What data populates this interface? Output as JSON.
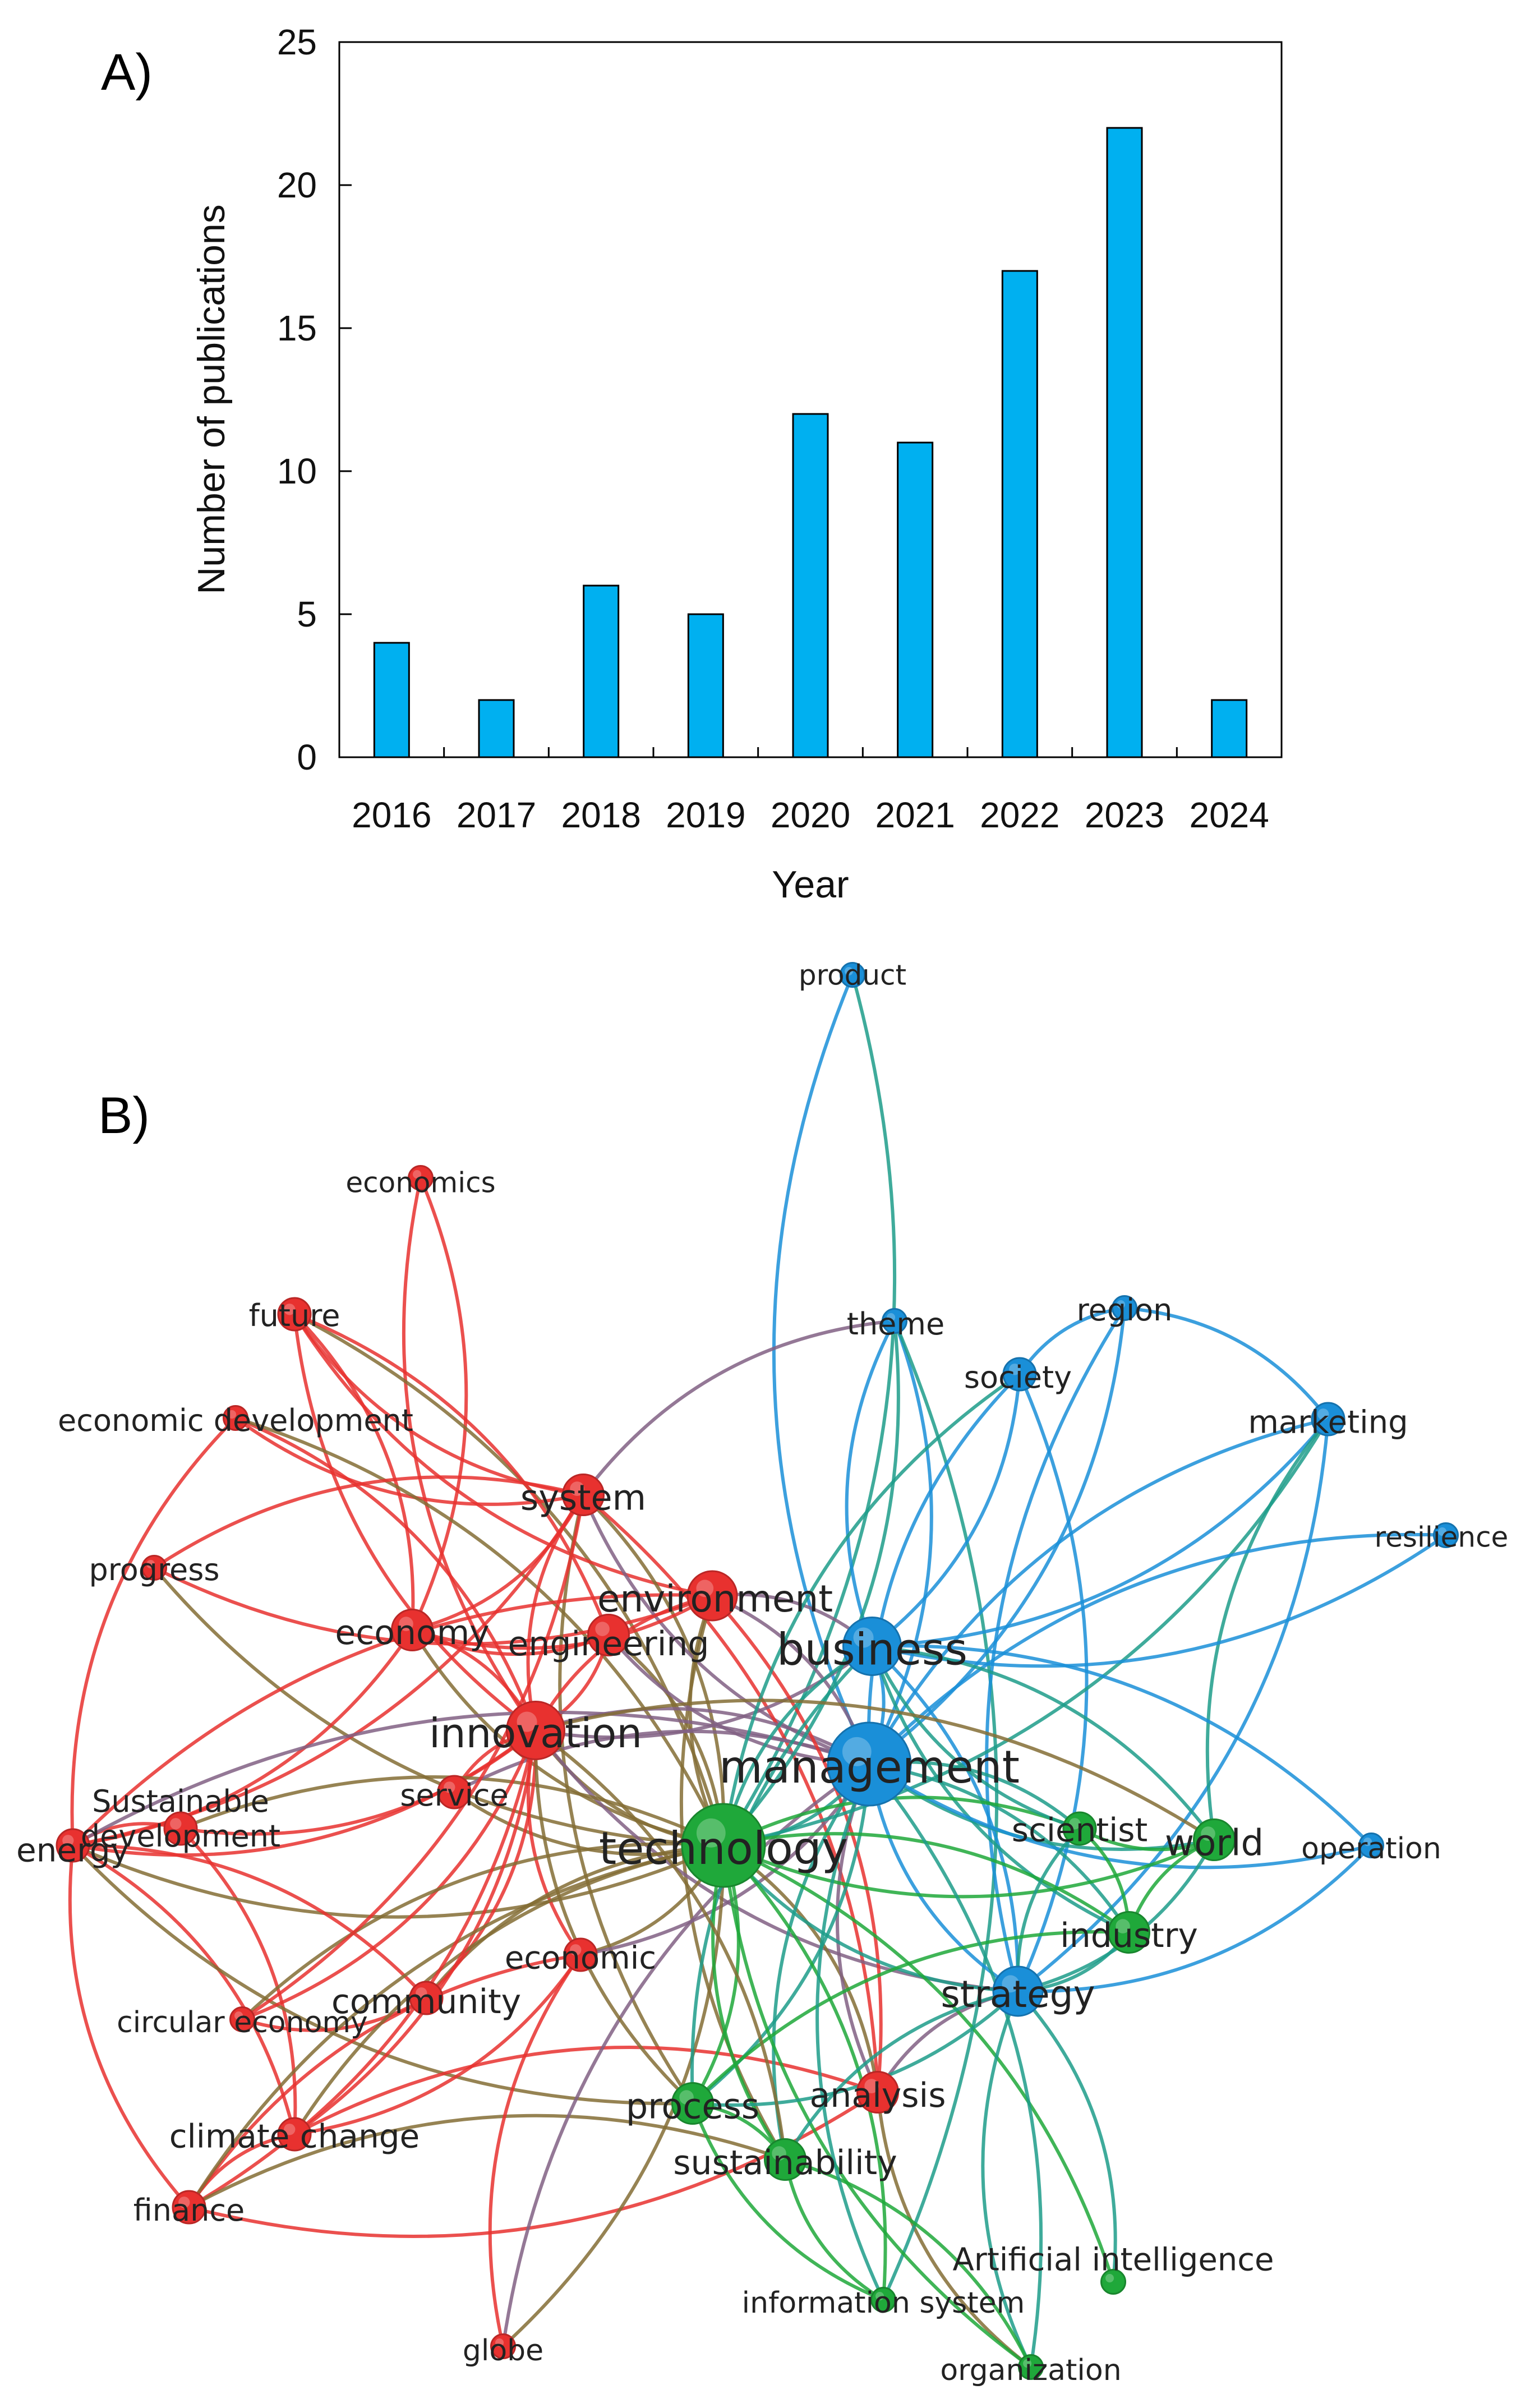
{
  "panel_a_label": "A)",
  "panel_b_label": "B)",
  "chart_data": [
    {
      "type": "bar",
      "title": "",
      "categories": [
        "2016",
        "2017",
        "2018",
        "2019",
        "2020",
        "2021",
        "2022",
        "2023",
        "2024"
      ],
      "values": [
        4,
        2,
        6,
        5,
        12,
        11,
        17,
        22,
        2
      ],
      "xlabel": "Year",
      "ylabel": "Number of publications",
      "ylim": [
        0,
        25
      ],
      "yticks": [
        0,
        5,
        10,
        15,
        20,
        25
      ],
      "bar_color": "#00b0f0",
      "grid": false
    },
    {
      "type": "network",
      "title": "",
      "clusters": [
        {
          "name": "red",
          "color": "#e8312f"
        },
        {
          "name": "green",
          "color": "#1fa83a"
        },
        {
          "name": "blue",
          "color": "#1a8fd8"
        }
      ],
      "nodes": [
        {
          "id": "product",
          "label": "product",
          "cluster": "blue",
          "weight": 1
        },
        {
          "id": "economics",
          "label": "economics",
          "cluster": "red",
          "weight": 1
        },
        {
          "id": "future",
          "label": "future",
          "cluster": "red",
          "weight": 2
        },
        {
          "id": "theme",
          "label": "theme",
          "cluster": "blue",
          "weight": 1
        },
        {
          "id": "region",
          "label": "region",
          "cluster": "blue",
          "weight": 1
        },
        {
          "id": "society",
          "label": "society",
          "cluster": "blue",
          "weight": 2
        },
        {
          "id": "economic_development",
          "label": "economic development",
          "cluster": "red",
          "weight": 1
        },
        {
          "id": "marketing",
          "label": "marketing",
          "cluster": "blue",
          "weight": 2
        },
        {
          "id": "system",
          "label": "system",
          "cluster": "red",
          "weight": 3
        },
        {
          "id": "resilience",
          "label": "resilience",
          "cluster": "blue",
          "weight": 1
        },
        {
          "id": "progress",
          "label": "progress",
          "cluster": "red",
          "weight": 1
        },
        {
          "id": "environment",
          "label": "environment",
          "cluster": "red",
          "weight": 4
        },
        {
          "id": "economy",
          "label": "economy",
          "cluster": "red",
          "weight": 3
        },
        {
          "id": "engineering",
          "label": "engineering",
          "cluster": "red",
          "weight": 3
        },
        {
          "id": "business",
          "label": "business",
          "cluster": "blue",
          "weight": 5
        },
        {
          "id": "innovation",
          "label": "innovation",
          "cluster": "red",
          "weight": 5
        },
        {
          "id": "management",
          "label": "management",
          "cluster": "blue",
          "weight": 8
        },
        {
          "id": "sustainable_development",
          "label": "Sustainable development",
          "cluster": "red",
          "weight": 2
        },
        {
          "id": "service",
          "label": "service",
          "cluster": "red",
          "weight": 2
        },
        {
          "id": "energy",
          "label": "energy",
          "cluster": "red",
          "weight": 2
        },
        {
          "id": "technology",
          "label": "technology",
          "cluster": "green",
          "weight": 8
        },
        {
          "id": "scientist",
          "label": "scientist",
          "cluster": "green",
          "weight": 2
        },
        {
          "id": "world",
          "label": "world",
          "cluster": "green",
          "weight": 3
        },
        {
          "id": "operation",
          "label": "operation",
          "cluster": "blue",
          "weight": 1
        },
        {
          "id": "industry",
          "label": "industry",
          "cluster": "green",
          "weight": 3
        },
        {
          "id": "economic",
          "label": "economic",
          "cluster": "red",
          "weight": 2
        },
        {
          "id": "community",
          "label": "community",
          "cluster": "red",
          "weight": 2
        },
        {
          "id": "strategy",
          "label": "strategy",
          "cluster": "blue",
          "weight": 4
        },
        {
          "id": "circular_economy",
          "label": "circular economy",
          "cluster": "red",
          "weight": 1
        },
        {
          "id": "process",
          "label": "process",
          "cluster": "green",
          "weight": 3
        },
        {
          "id": "analysis",
          "label": "analysis",
          "cluster": "red",
          "weight": 3
        },
        {
          "id": "climate_change",
          "label": "climate change",
          "cluster": "red",
          "weight": 2
        },
        {
          "id": "sustainability",
          "label": "sustainability",
          "cluster": "green",
          "weight": 3
        },
        {
          "id": "finance",
          "label": "finance",
          "cluster": "red",
          "weight": 2
        },
        {
          "id": "artificial_intelligence",
          "label": "Artificial intelligence",
          "cluster": "green",
          "weight": 1
        },
        {
          "id": "information_system",
          "label": "information system",
          "cluster": "green",
          "weight": 1
        },
        {
          "id": "globe",
          "label": "globe",
          "cluster": "red",
          "weight": 1
        },
        {
          "id": "organization",
          "label": "organization",
          "cluster": "green",
          "weight": 1
        }
      ],
      "edges": [
        [
          "product",
          "management"
        ],
        [
          "product",
          "technology"
        ],
        [
          "economics",
          "innovation"
        ],
        [
          "economics",
          "economy"
        ],
        [
          "future",
          "system"
        ],
        [
          "future",
          "economy"
        ],
        [
          "future",
          "innovation"
        ],
        [
          "future",
          "technology"
        ],
        [
          "future",
          "environment"
        ],
        [
          "future",
          "engineering"
        ],
        [
          "economic_development",
          "system"
        ],
        [
          "economic_development",
          "innovation"
        ],
        [
          "economic_development",
          "energy"
        ],
        [
          "economic_development",
          "technology"
        ],
        [
          "progress",
          "environment"
        ],
        [
          "progress",
          "system"
        ],
        [
          "progress",
          "technology"
        ],
        [
          "system",
          "economy"
        ],
        [
          "system",
          "innovation"
        ],
        [
          "system",
          "technology"
        ],
        [
          "system",
          "management"
        ],
        [
          "system",
          "analysis"
        ],
        [
          "system",
          "process"
        ],
        [
          "system",
          "energy"
        ],
        [
          "environment",
          "technology"
        ],
        [
          "environment",
          "management"
        ],
        [
          "environment",
          "innovation"
        ],
        [
          "environment",
          "economy"
        ],
        [
          "environment",
          "energy"
        ],
        [
          "environment",
          "business"
        ],
        [
          "environment",
          "sustainability"
        ],
        [
          "economy",
          "innovation"
        ],
        [
          "economy",
          "technology"
        ],
        [
          "economy",
          "energy"
        ],
        [
          "economy",
          "engineering"
        ],
        [
          "engineering",
          "technology"
        ],
        [
          "engineering",
          "management"
        ],
        [
          "engineering",
          "innovation"
        ],
        [
          "innovation",
          "technology"
        ],
        [
          "innovation",
          "management"
        ],
        [
          "innovation",
          "business"
        ],
        [
          "innovation",
          "energy"
        ],
        [
          "innovation",
          "service"
        ],
        [
          "innovation",
          "sustainable_development"
        ],
        [
          "innovation",
          "strategy"
        ],
        [
          "sustainable_development",
          "technology"
        ],
        [
          "sustainable_development",
          "energy"
        ],
        [
          "sustainable_development",
          "climate_change"
        ],
        [
          "service",
          "technology"
        ],
        [
          "service",
          "management"
        ],
        [
          "energy",
          "technology"
        ],
        [
          "energy",
          "climate_change"
        ],
        [
          "energy",
          "finance"
        ],
        [
          "energy",
          "community"
        ],
        [
          "energy",
          "process"
        ],
        [
          "energy",
          "management"
        ],
        [
          "economic",
          "technology"
        ],
        [
          "economic",
          "innovation"
        ],
        [
          "economic",
          "management"
        ],
        [
          "economic",
          "climate_change"
        ],
        [
          "economic",
          "finance"
        ],
        [
          "community",
          "technology"
        ],
        [
          "community",
          "innovation"
        ],
        [
          "community",
          "circular_economy"
        ],
        [
          "circular_economy",
          "innovation"
        ],
        [
          "circular_economy",
          "technology"
        ],
        [
          "circular_economy",
          "system"
        ],
        [
          "climate_change",
          "technology"
        ],
        [
          "climate_change",
          "innovation"
        ],
        [
          "climate_change",
          "analysis"
        ],
        [
          "climate_change",
          "finance"
        ],
        [
          "finance",
          "technology"
        ],
        [
          "finance",
          "innovation"
        ],
        [
          "finance",
          "sustainability"
        ],
        [
          "finance",
          "analysis"
        ],
        [
          "globe",
          "economic"
        ],
        [
          "globe",
          "technology"
        ],
        [
          "globe",
          "management"
        ],
        [
          "analysis",
          "technology"
        ],
        [
          "analysis",
          "management"
        ],
        [
          "analysis",
          "environment"
        ],
        [
          "analysis",
          "strategy"
        ],
        [
          "analysis",
          "organization"
        ],
        [
          "theme",
          "management"
        ],
        [
          "theme",
          "business"
        ],
        [
          "theme",
          "technology"
        ],
        [
          "theme",
          "system"
        ],
        [
          "theme",
          "information_system"
        ],
        [
          "region",
          "society"
        ],
        [
          "region",
          "management"
        ],
        [
          "region",
          "strategy"
        ],
        [
          "society",
          "business"
        ],
        [
          "society",
          "management"
        ],
        [
          "society",
          "strategy"
        ],
        [
          "society",
          "technology"
        ],
        [
          "marketing",
          "business"
        ],
        [
          "marketing",
          "management"
        ],
        [
          "marketing",
          "strategy"
        ],
        [
          "marketing",
          "world"
        ],
        [
          "marketing",
          "technology"
        ],
        [
          "marketing",
          "region"
        ],
        [
          "resilience",
          "business"
        ],
        [
          "resilience",
          "management"
        ],
        [
          "business",
          "management"
        ],
        [
          "business",
          "technology"
        ],
        [
          "business",
          "strategy"
        ],
        [
          "business",
          "industry"
        ],
        [
          "business",
          "world"
        ],
        [
          "business",
          "process"
        ],
        [
          "management",
          "technology"
        ],
        [
          "management",
          "strategy"
        ],
        [
          "management",
          "scientist"
        ],
        [
          "management",
          "world"
        ],
        [
          "management",
          "industry"
        ],
        [
          "management",
          "operation"
        ],
        [
          "management",
          "process"
        ],
        [
          "management",
          "sustainability"
        ],
        [
          "operation",
          "strategy"
        ],
        [
          "operation",
          "business"
        ],
        [
          "technology",
          "scientist"
        ],
        [
          "technology",
          "world"
        ],
        [
          "technology",
          "industry"
        ],
        [
          "technology",
          "strategy"
        ],
        [
          "technology",
          "process"
        ],
        [
          "technology",
          "sustainability"
        ],
        [
          "technology",
          "information_system"
        ],
        [
          "technology",
          "organization"
        ],
        [
          "technology",
          "artificial_intelligence"
        ],
        [
          "scientist",
          "world"
        ],
        [
          "scientist",
          "industry"
        ],
        [
          "scientist",
          "strategy"
        ],
        [
          "scientist",
          "business"
        ],
        [
          "world",
          "industry"
        ],
        [
          "world",
          "strategy"
        ],
        [
          "world",
          "innovation"
        ],
        [
          "industry",
          "strategy"
        ],
        [
          "industry",
          "process"
        ],
        [
          "strategy",
          "process"
        ],
        [
          "strategy",
          "sustainability"
        ],
        [
          "strategy",
          "artificial_intelligence"
        ],
        [
          "strategy",
          "organization"
        ],
        [
          "process",
          "sustainability"
        ],
        [
          "process",
          "information_system"
        ],
        [
          "process",
          "innovation"
        ],
        [
          "sustainability",
          "information_system"
        ],
        [
          "sustainability",
          "organization"
        ],
        [
          "sustainability",
          "innovation"
        ],
        [
          "information_system",
          "management"
        ],
        [
          "organization",
          "management"
        ]
      ]
    }
  ]
}
